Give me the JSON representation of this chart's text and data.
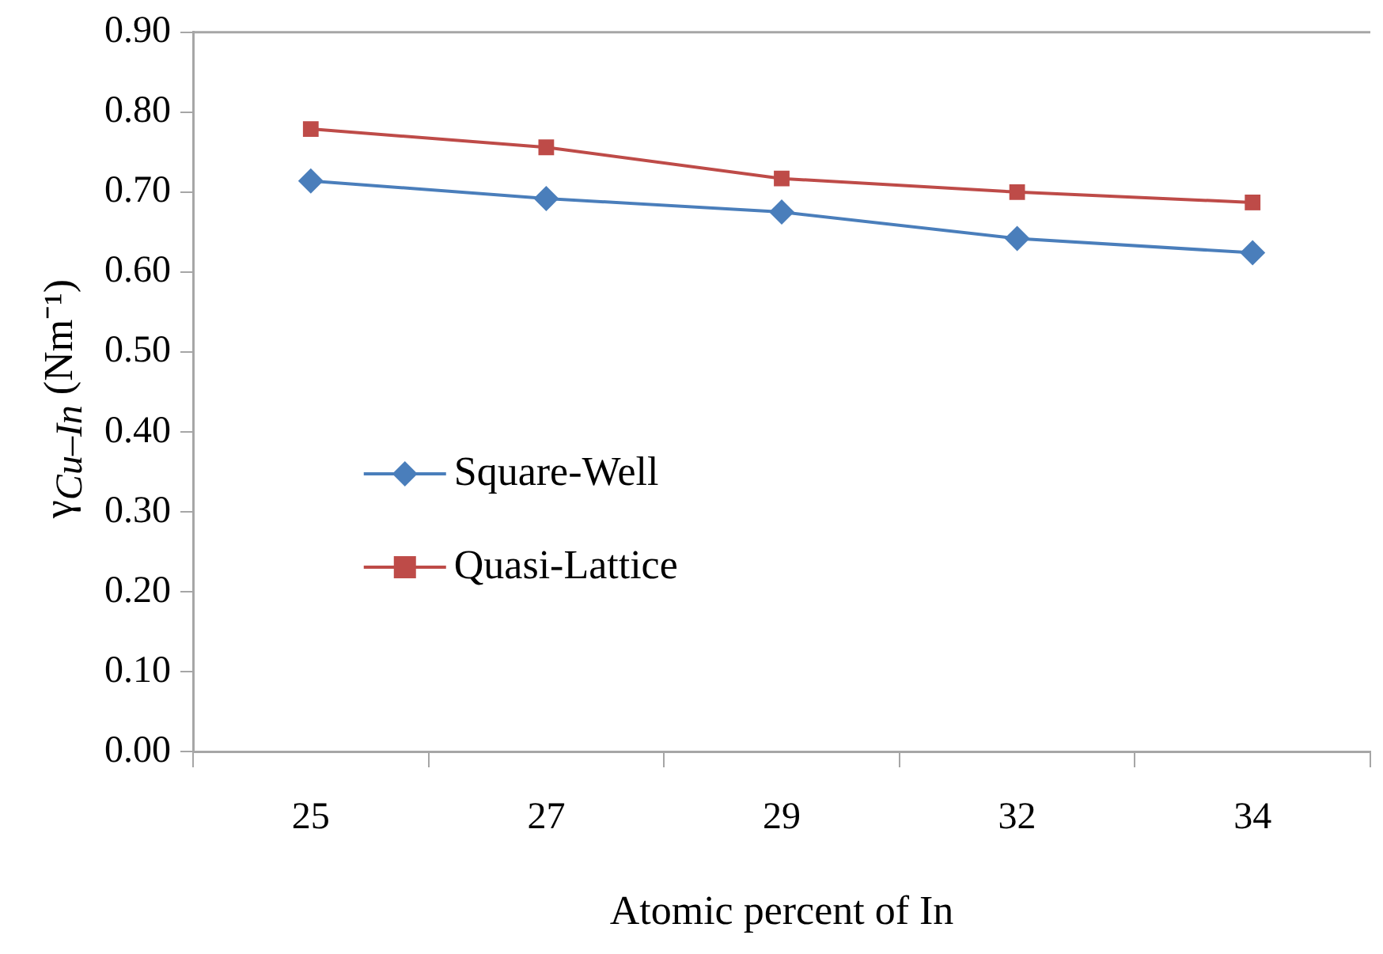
{
  "chart_data": {
    "type": "line",
    "xlabel": "Atomic percent of In",
    "ylabel": "γ$_{Cu–In}$ (Nm⁻¹)",
    "categories": [
      "25",
      "27",
      "29",
      "32",
      "34"
    ],
    "series": [
      {
        "name": "Square-Well",
        "color": "#4a7ebb",
        "marker": "diamond",
        "values": [
          0.714,
          0.692,
          0.675,
          0.642,
          0.624
        ]
      },
      {
        "name": "Quasi-Lattice",
        "color": "#be4b48",
        "marker": "square",
        "values": [
          0.779,
          0.756,
          0.717,
          0.7,
          0.687
        ]
      }
    ],
    "ylim": [
      0,
      0.9
    ],
    "yticks": [
      {
        "value": 0,
        "label": "0.00"
      },
      {
        "value": 0.1,
        "label": "0.10"
      },
      {
        "value": 0.2,
        "label": "0.20"
      },
      {
        "value": 0.3,
        "label": "0.30"
      },
      {
        "value": 0.4,
        "label": "0.40"
      },
      {
        "value": 0.5,
        "label": "0.50"
      },
      {
        "value": 0.6,
        "label": "0.60"
      },
      {
        "value": 0.7,
        "label": "0.70"
      },
      {
        "value": 0.8,
        "label": "0.80"
      },
      {
        "value": 0.9,
        "label": "0.90"
      }
    ],
    "grid": false,
    "legend": "left",
    "line_style": "solid"
  }
}
